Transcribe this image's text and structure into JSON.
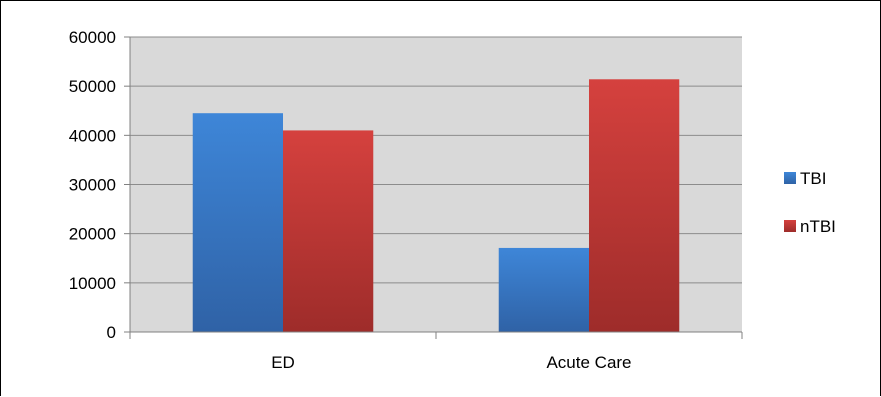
{
  "chart_data": {
    "type": "bar",
    "categories": [
      "ED",
      "Acute Care"
    ],
    "series": [
      {
        "name": "TBI",
        "values": [
          44500,
          17100
        ],
        "color": "#3a78c9"
      },
      {
        "name": "nTBI",
        "values": [
          41000,
          51400
        ],
        "color": "#cc3c3a"
      }
    ],
    "ylim": [
      0,
      60000
    ],
    "yticks": [
      "0",
      "10000",
      "20000",
      "30000",
      "40000",
      "50000",
      "60000"
    ],
    "grid": true,
    "legend_position": "right",
    "plot_background": "#d9d9d9"
  }
}
